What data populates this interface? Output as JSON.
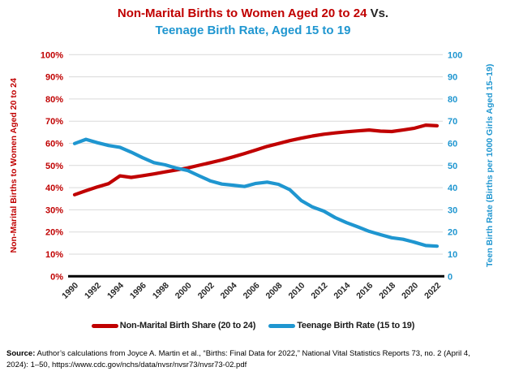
{
  "title": {
    "line1_main": "Non-Marital Births to Women Aged 20 to 24",
    "line1_suffix": " Vs.",
    "line2": "Teenage Birth Rate, Aged 15 to 19"
  },
  "colors": {
    "series_red": "#C00000",
    "series_blue": "#1F96D0",
    "grid": "#D9D9D9",
    "axis_line": "#000000",
    "x_label": "#262626"
  },
  "chart_data": {
    "type": "line",
    "x": [
      1990,
      1991,
      1992,
      1993,
      1994,
      1995,
      1996,
      1997,
      1998,
      1999,
      2000,
      2001,
      2002,
      2003,
      2004,
      2005,
      2006,
      2007,
      2008,
      2009,
      2010,
      2011,
      2012,
      2013,
      2014,
      2015,
      2016,
      2017,
      2018,
      2019,
      2020,
      2021,
      2022
    ],
    "x_tick_every": 2,
    "grid": true,
    "legend_position": "bottom",
    "left_axis": {
      "title": "Non-Marital Births to Women Aged 20 to 24",
      "min": 0,
      "max": 100,
      "step": 10,
      "unit": "%",
      "tick_labels": [
        "0%",
        "10%",
        "20%",
        "30%",
        "40%",
        "50%",
        "60%",
        "70%",
        "80%",
        "90%",
        "100%"
      ]
    },
    "right_axis": {
      "title": "Teen Birth Rate (Births per 1000 Girls Aged 15–19)",
      "min": 0,
      "max": 100,
      "step": 10,
      "unit": "",
      "tick_labels": [
        "0",
        "10",
        "20",
        "30",
        "40",
        "50",
        "60",
        "70",
        "80",
        "90",
        "100"
      ]
    },
    "series": [
      {
        "name": "Non-Marital Birth Share (20 to 24)",
        "axis": "left",
        "color_key": "series_red",
        "values": [
          36.8,
          38.6,
          40.3,
          41.8,
          45.3,
          44.6,
          45.4,
          46.2,
          47.1,
          48.0,
          48.9,
          50.1,
          51.3,
          52.5,
          53.9,
          55.4,
          57.0,
          58.6,
          59.9,
          61.2,
          62.3,
          63.3,
          64.1,
          64.7,
          65.2,
          65.6,
          66.0,
          65.5,
          65.3,
          66.0,
          66.8,
          68.2,
          67.9
        ]
      },
      {
        "name": "Teenage Birth Rate (15 to 19)",
        "axis": "right",
        "color_key": "series_blue",
        "values": [
          59.9,
          61.8,
          60.3,
          59.0,
          58.2,
          56.0,
          53.5,
          51.3,
          50.3,
          48.8,
          47.7,
          45.3,
          43.0,
          41.6,
          41.1,
          40.5,
          41.9,
          42.5,
          41.5,
          39.1,
          34.2,
          31.3,
          29.4,
          26.5,
          24.2,
          22.3,
          20.3,
          18.8,
          17.4,
          16.7,
          15.4,
          13.9,
          13.6
        ]
      }
    ]
  },
  "legend": {
    "items": [
      {
        "label": "Non-Marital Birth Share (20 to 24)",
        "color_key": "series_red"
      },
      {
        "label": "Teenage Birth Rate (15 to 19)",
        "color_key": "series_blue"
      }
    ]
  },
  "footer": {
    "label": "Source:",
    "text": " Author’s calculations from Joyce A. Martin et al., “Births: Final Data for 2022,” National Vital Statistics Reports 73, no. 2 (April 4, 2024): 1–50, https://www.cdc.gov/nchs/data/nvsr/nvsr73/nvsr73-02.pdf"
  }
}
